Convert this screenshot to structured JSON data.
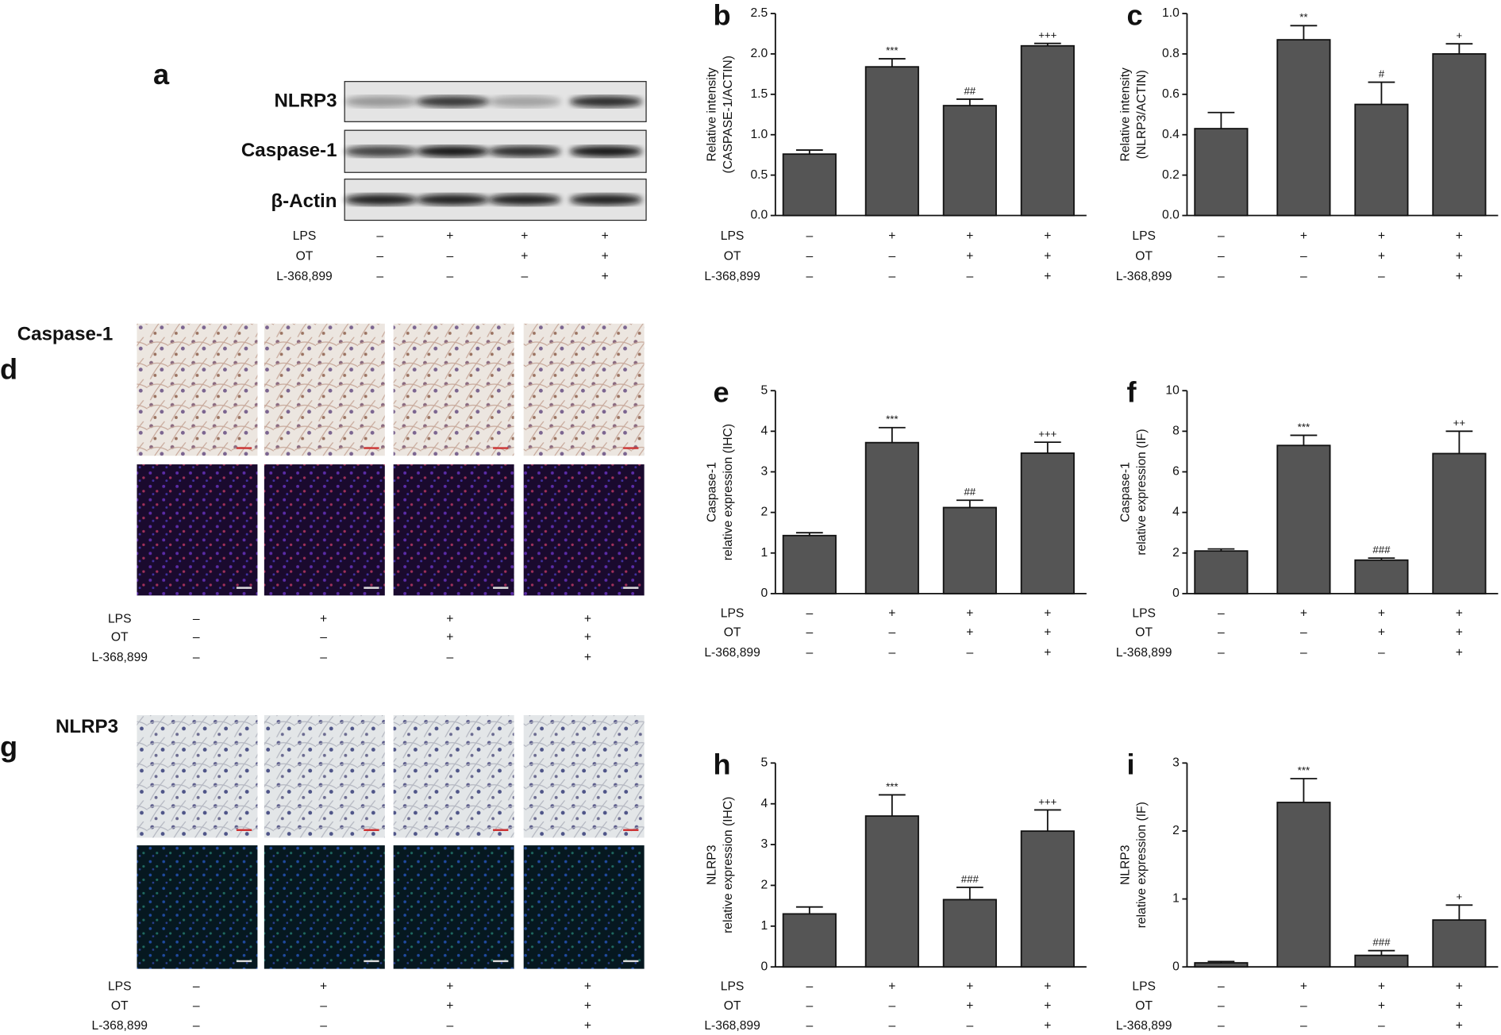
{
  "blot": {
    "label": "a",
    "rows": [
      "NLRP3",
      "Caspase-1",
      "β-Actin"
    ],
    "conditions": [
      {
        "name": "LPS",
        "signs": [
          "–",
          "+",
          "+",
          "+"
        ]
      },
      {
        "name": "OT",
        "signs": [
          "–",
          "–",
          "+",
          "+"
        ]
      },
      {
        "name": "L-368,899",
        "signs": [
          "–",
          "–",
          "–",
          "+"
        ]
      }
    ]
  },
  "ihc_caspase": {
    "label": "d",
    "title": "Caspase-1",
    "conditions": [
      {
        "name": "LPS",
        "signs": [
          "–",
          "+",
          "+",
          "+"
        ]
      },
      {
        "name": "OT",
        "signs": [
          "–",
          "–",
          "+",
          "+"
        ]
      },
      {
        "name": "L-368,899",
        "signs": [
          "–",
          "–",
          "–",
          "+"
        ]
      }
    ]
  },
  "ihc_nlrp3": {
    "label": "g",
    "title": "NLRP3",
    "conditions": [
      {
        "name": "LPS",
        "signs": [
          "–",
          "+",
          "+",
          "+"
        ]
      },
      {
        "name": "OT",
        "signs": [
          "–",
          "–",
          "+",
          "+"
        ]
      },
      {
        "name": "L-368,899",
        "signs": [
          "–",
          "–",
          "–",
          "+"
        ]
      }
    ]
  },
  "chart_data": [
    {
      "type": "bar",
      "label": "b",
      "ylabel": [
        "Relative intensity",
        "(CASPASE-1/ACTIN)"
      ],
      "color": "#555555",
      "values": [
        0.76,
        1.84,
        1.36,
        2.1
      ],
      "errors": [
        0.05,
        0.1,
        0.08,
        0.03
      ],
      "annotations": [
        null,
        "***",
        "##",
        "+++"
      ],
      "ylim": [
        0,
        2.5
      ],
      "yticks": [
        {
          "value": 0,
          "label": "0.0"
        },
        0.5,
        {
          "value": 1,
          "label": "1.0"
        },
        1.5,
        {
          "value": 2,
          "label": "2.0"
        },
        2.5
      ],
      "conditions": [
        {
          "name": "LPS",
          "signs": [
            "–",
            "+",
            "+",
            "+"
          ]
        },
        {
          "name": "OT",
          "signs": [
            "–",
            "–",
            "+",
            "+"
          ]
        },
        {
          "name": "L-368,899",
          "signs": [
            "–",
            "–",
            "–",
            "+"
          ]
        }
      ]
    },
    {
      "type": "bar",
      "label": "c",
      "ylabel": [
        "Relative intensity",
        "(NLRP3/ACTIN)"
      ],
      "color": "#555555",
      "values": [
        0.43,
        0.87,
        0.55,
        0.8
      ],
      "errors": [
        0.08,
        0.07,
        0.11,
        0.05
      ],
      "annotations": [
        null,
        "**",
        "#",
        "+"
      ],
      "ylim": [
        0,
        1
      ],
      "yticks": [
        {
          "value": 0,
          "label": "0.0"
        },
        0.2,
        0.4,
        0.6,
        0.8,
        {
          "value": 1,
          "label": "1.0"
        }
      ],
      "conditions": [
        {
          "name": "LPS",
          "signs": [
            "–",
            "+",
            "+",
            "+"
          ]
        },
        {
          "name": "OT",
          "signs": [
            "–",
            "–",
            "+",
            "+"
          ]
        },
        {
          "name": "L-368,899",
          "signs": [
            "–",
            "–",
            "–",
            "+"
          ]
        }
      ]
    },
    {
      "type": "bar",
      "label": "e",
      "ylabel": [
        "Caspase-1",
        "relative expression (IHC)"
      ],
      "color": "#555555",
      "values": [
        1.43,
        3.72,
        2.12,
        3.46
      ],
      "errors": [
        0.07,
        0.37,
        0.18,
        0.27
      ],
      "annotations": [
        null,
        "***",
        "##",
        "+++"
      ],
      "ylim": [
        0,
        5
      ],
      "yticks": [
        0,
        1,
        2,
        3,
        4,
        5
      ],
      "conditions": [
        {
          "name": "LPS",
          "signs": [
            "–",
            "+",
            "+",
            "+"
          ]
        },
        {
          "name": "OT",
          "signs": [
            "–",
            "–",
            "+",
            "+"
          ]
        },
        {
          "name": "L-368,899",
          "signs": [
            "–",
            "–",
            "–",
            "+"
          ]
        }
      ]
    },
    {
      "type": "bar",
      "label": "f",
      "ylabel": [
        "Caspase-1",
        "relative expression (IF)"
      ],
      "color": "#555555",
      "values": [
        2.1,
        7.3,
        1.65,
        6.9
      ],
      "errors": [
        0.1,
        0.5,
        0.1,
        1.1
      ],
      "annotations": [
        null,
        "***",
        "###",
        "++"
      ],
      "ylim": [
        0,
        10
      ],
      "yticks": [
        0,
        2,
        4,
        6,
        8,
        10
      ],
      "conditions": [
        {
          "name": "LPS",
          "signs": [
            "–",
            "+",
            "+",
            "+"
          ]
        },
        {
          "name": "OT",
          "signs": [
            "–",
            "–",
            "+",
            "+"
          ]
        },
        {
          "name": "L-368,899",
          "signs": [
            "–",
            "–",
            "–",
            "+"
          ]
        }
      ]
    },
    {
      "type": "bar",
      "label": "h",
      "ylabel": [
        "NLRP3",
        "relative expression (IHC)"
      ],
      "color": "#555555",
      "values": [
        1.3,
        3.7,
        1.65,
        3.33
      ],
      "errors": [
        0.17,
        0.52,
        0.3,
        0.52
      ],
      "annotations": [
        null,
        "***",
        "###",
        "+++"
      ],
      "ylim": [
        0,
        5
      ],
      "yticks": [
        0,
        1,
        2,
        3,
        4,
        5
      ],
      "conditions": [
        {
          "name": "LPS",
          "signs": [
            "–",
            "+",
            "+",
            "+"
          ]
        },
        {
          "name": "OT",
          "signs": [
            "–",
            "–",
            "+",
            "+"
          ]
        },
        {
          "name": "L-368,899",
          "signs": [
            "–",
            "–",
            "–",
            "+"
          ]
        }
      ]
    },
    {
      "type": "bar",
      "label": "i",
      "ylabel": [
        "NLRP3",
        "relative expression (IF)"
      ],
      "color": "#555555",
      "values": [
        0.06,
        2.42,
        0.17,
        0.69
      ],
      "errors": [
        0.02,
        0.35,
        0.07,
        0.22
      ],
      "annotations": [
        null,
        "***",
        "###",
        "+"
      ],
      "ylim": [
        0,
        3
      ],
      "yticks": [
        0,
        1,
        2,
        3
      ],
      "conditions": [
        {
          "name": "LPS",
          "signs": [
            "–",
            "+",
            "+",
            "+"
          ]
        },
        {
          "name": "OT",
          "signs": [
            "–",
            "–",
            "+",
            "+"
          ]
        },
        {
          "name": "L-368,899",
          "signs": [
            "–",
            "–",
            "–",
            "+"
          ]
        }
      ]
    }
  ]
}
